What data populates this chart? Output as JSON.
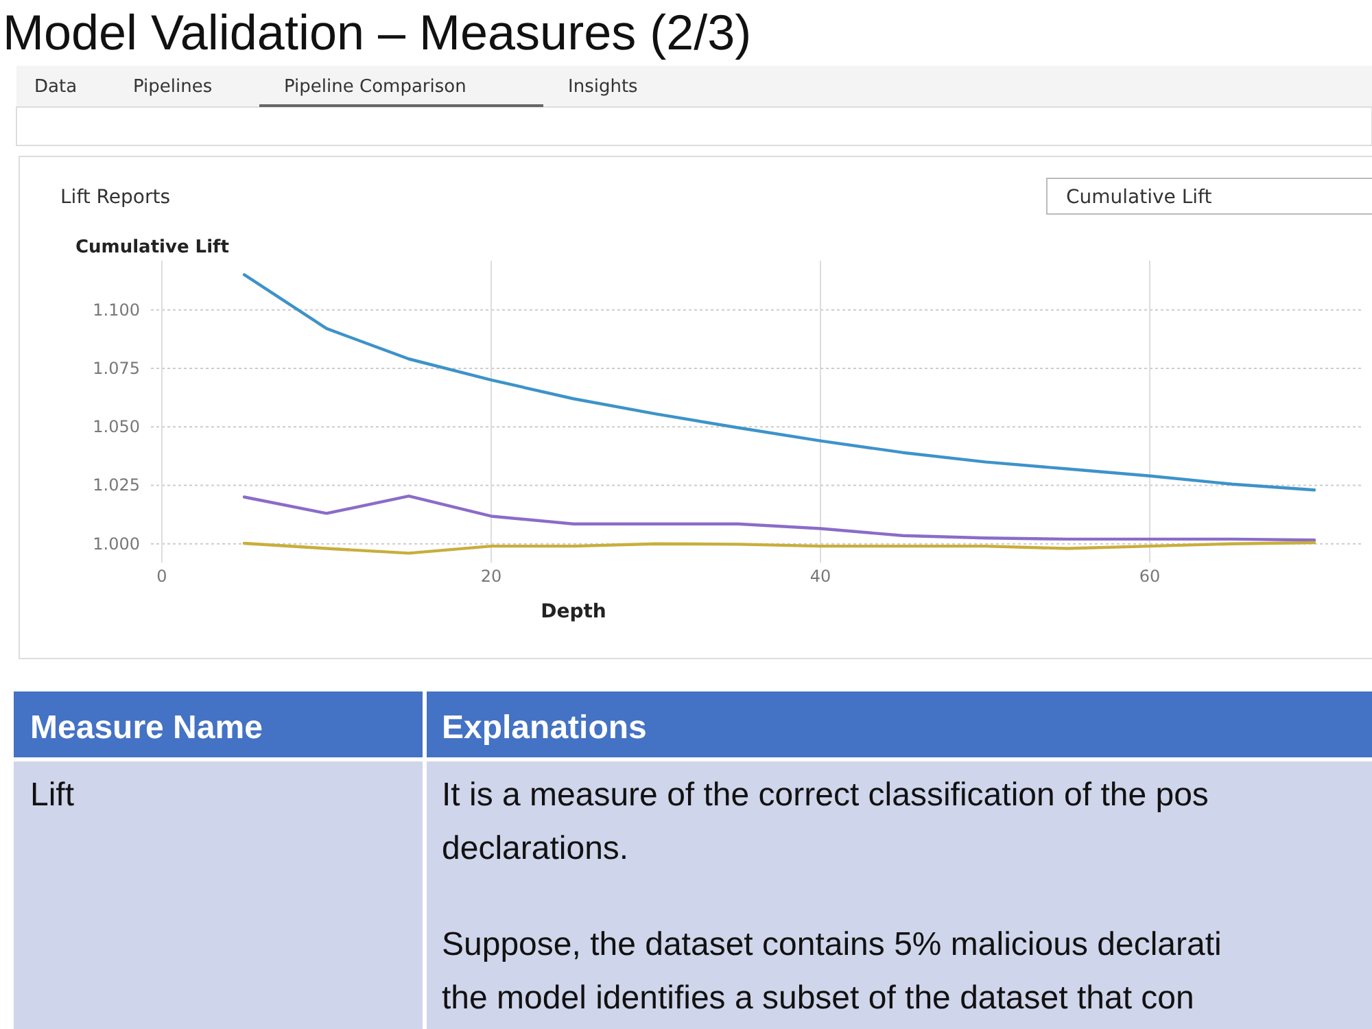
{
  "chart_data": {
    "type": "line",
    "title": "Model Validation – Measures   (2/3)",
    "subtitle": "Lift Reports",
    "ylabel": "Cumulative Lift",
    "xlabel": "Depth",
    "annotations": [
      "Data",
      "Pipelines",
      "Pipeline Comparison",
      "Insights",
      "Cumulative Lift",
      "Measure Name",
      "Explanations",
      "Lift",
      "It is a measure of the correct classification of the pos",
      "declarations.",
      "Suppose, the dataset contains 5% malicious declarati",
      "the model identifies a subset of the dataset that con"
    ],
    "x": [
      5,
      10,
      15,
      20,
      25,
      30,
      35,
      40,
      45,
      50,
      55,
      60,
      65,
      70
    ],
    "xlim": [
      0,
      73
    ],
    "xticks": [
      0,
      20,
      40,
      60
    ],
    "ylim": [
      0.992,
      1.121
    ],
    "yticks": [
      {
        "value": 1.0,
        "label": "1.000"
      },
      {
        "value": 1.025,
        "label": "1.025"
      },
      {
        "value": 1.05,
        "label": "1.050"
      },
      {
        "value": 1.075,
        "label": "1.075"
      },
      {
        "value": 1.1,
        "label": "1.100"
      }
    ],
    "grid": true,
    "series": [
      {
        "color": "#3d93c9",
        "values": [
          1.115,
          1.092,
          1.079,
          1.07,
          1.062,
          1.0555,
          1.0496,
          1.044,
          1.039,
          1.035,
          1.032,
          1.029,
          1.0255,
          1.023
        ]
      },
      {
        "color": "#8b6cc8",
        "values": [
          1.02,
          1.013,
          1.0204,
          1.0118,
          1.0085,
          1.0085,
          1.0085,
          1.0065,
          1.0035,
          1.0025,
          1.002,
          1.002,
          1.002,
          1.0016
        ]
      },
      {
        "color": "#c8ae3c",
        "values": [
          1.0002,
          0.998,
          0.996,
          0.999,
          0.999,
          1.0,
          0.9998,
          0.999,
          0.999,
          0.999,
          0.998,
          0.999,
          1.0,
          1.0005
        ]
      }
    ]
  }
}
